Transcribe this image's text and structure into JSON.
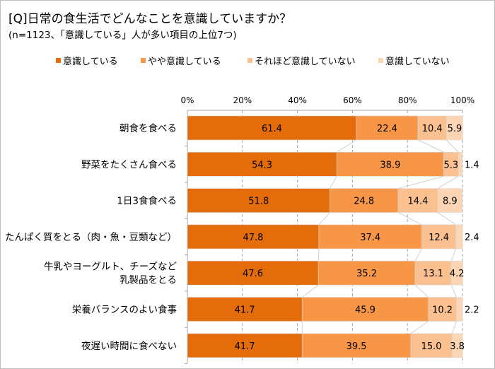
{
  "title": "[Q]日常の食生活でどんなことを意識していますか？",
  "subtitle": "(n=1123、「意識している」人が多い項目の上位7つ)",
  "chart_data": {
    "type": "bar",
    "orientation": "horizontal",
    "stacked": "100%",
    "categories": [
      [
        "朝食を食べる"
      ],
      [
        "野菜をたくさん食べる"
      ],
      [
        "1日3食食べる"
      ],
      [
        "たんぱく質をとる（肉・魚・豆類など）"
      ],
      [
        "牛乳やヨーグルト、チーズなど",
        "乳製品をとる"
      ],
      [
        "栄養バランスのよい食事"
      ],
      [
        "夜遅い時間に食べない"
      ]
    ],
    "series": [
      {
        "name": "意識している",
        "color": "#E46C0A",
        "values": [
          61.4,
          54.3,
          51.8,
          47.8,
          47.6,
          41.7,
          41.7
        ]
      },
      {
        "name": "やや意識している",
        "color": "#F79646",
        "values": [
          22.4,
          38.9,
          24.8,
          37.4,
          35.2,
          45.9,
          39.5
        ]
      },
      {
        "name": "それほど意識していない",
        "color": "#FAC090",
        "values": [
          10.4,
          5.3,
          14.4,
          12.4,
          13.1,
          10.2,
          15.0
        ]
      },
      {
        "name": "意識していない",
        "color": "#FCD5B5",
        "values": [
          5.9,
          1.4,
          8.9,
          2.4,
          4.2,
          2.2,
          3.8
        ]
      }
    ],
    "xticks": [
      "0%",
      "20%",
      "40%",
      "60%",
      "80%",
      "100%"
    ],
    "xlim": [
      0,
      100
    ],
    "grid": true,
    "legend": "top",
    "series_lines": true
  }
}
